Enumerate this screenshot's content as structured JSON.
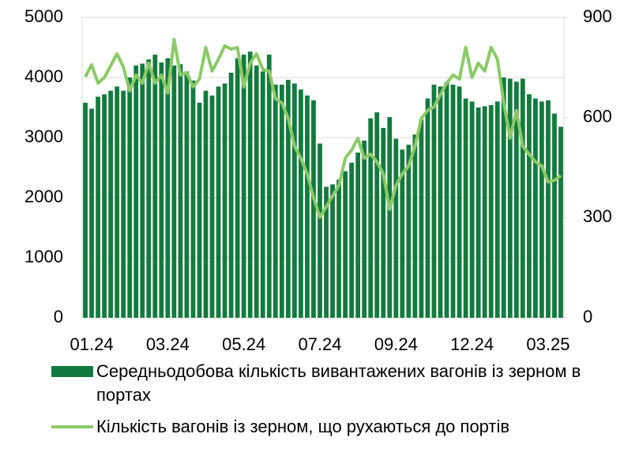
{
  "chart_data": {
    "type": "bar_line",
    "categories": [
      null,
      "01.24",
      null,
      null,
      null,
      null,
      null,
      null,
      null,
      null,
      null,
      null,
      null,
      "03.24",
      null,
      null,
      null,
      null,
      null,
      null,
      null,
      null,
      null,
      null,
      null,
      "05.24",
      null,
      null,
      null,
      null,
      null,
      null,
      null,
      null,
      null,
      null,
      null,
      "07.24",
      null,
      null,
      null,
      null,
      null,
      null,
      null,
      null,
      null,
      null,
      null,
      "09.24",
      null,
      null,
      null,
      null,
      null,
      null,
      null,
      null,
      null,
      null,
      null,
      "12.24",
      null,
      null,
      null,
      null,
      null,
      null,
      null,
      null,
      null,
      null,
      null,
      "03.25",
      null,
      null
    ],
    "series": [
      {
        "name": "Середньодобова кількість вивантажених вагонів із зерном  в портах",
        "type": "bar",
        "color": "#137a3e",
        "values": [
          3580,
          3480,
          3680,
          3720,
          3780,
          3850,
          3780,
          4000,
          4200,
          4230,
          4300,
          4380,
          4250,
          4320,
          4200,
          4220,
          4100,
          3950,
          3580,
          3780,
          3700,
          3850,
          3900,
          4080,
          4320,
          4380,
          4430,
          4200,
          4100,
          4380,
          3880,
          3880,
          3960,
          3900,
          3800,
          3700,
          3620,
          2900,
          2180,
          2220,
          2300,
          2440,
          2580,
          2750,
          2950,
          3320,
          3420,
          3160,
          3340,
          2980,
          2800,
          2880,
          3050,
          3300,
          3650,
          3880,
          3850,
          3920,
          3880,
          3850,
          3650,
          3600,
          3500,
          3520,
          3540,
          3600,
          4000,
          3980,
          3930,
          3980,
          3720,
          3650,
          3600,
          3620,
          3400,
          3180
        ]
      },
      {
        "name": "Кількість вагонів із зерном, що рухаються до портів",
        "type": "line",
        "axis": "y2",
        "color": "#8cc967",
        "values": [
          722,
          758,
          703,
          720,
          755,
          791,
          751,
          680,
          727,
          703,
          763,
          703,
          727,
          673,
          834,
          727,
          734,
          692,
          715,
          810,
          739,
          775,
          815,
          805,
          810,
          692,
          763,
          791,
          744,
          739,
          656,
          644,
          597,
          514,
          478,
          431,
          360,
          301,
          332,
          365,
          396,
          478,
          502,
          538,
          478,
          490,
          467,
          431,
          325,
          396,
          431,
          455,
          514,
          597,
          621,
          632,
          668,
          703,
          727,
          715,
          810,
          720,
          763,
          739,
          810,
          775,
          644,
          538,
          621,
          514,
          490,
          467,
          455,
          407,
          412,
          426
        ]
      }
    ],
    "ylim": [
      0,
      5000
    ],
    "yticks": [
      0,
      1000,
      2000,
      3000,
      4000,
      5000
    ],
    "y2lim": [
      0,
      900
    ],
    "y2ticks": [
      0,
      300,
      600,
      900
    ],
    "grid": true
  }
}
